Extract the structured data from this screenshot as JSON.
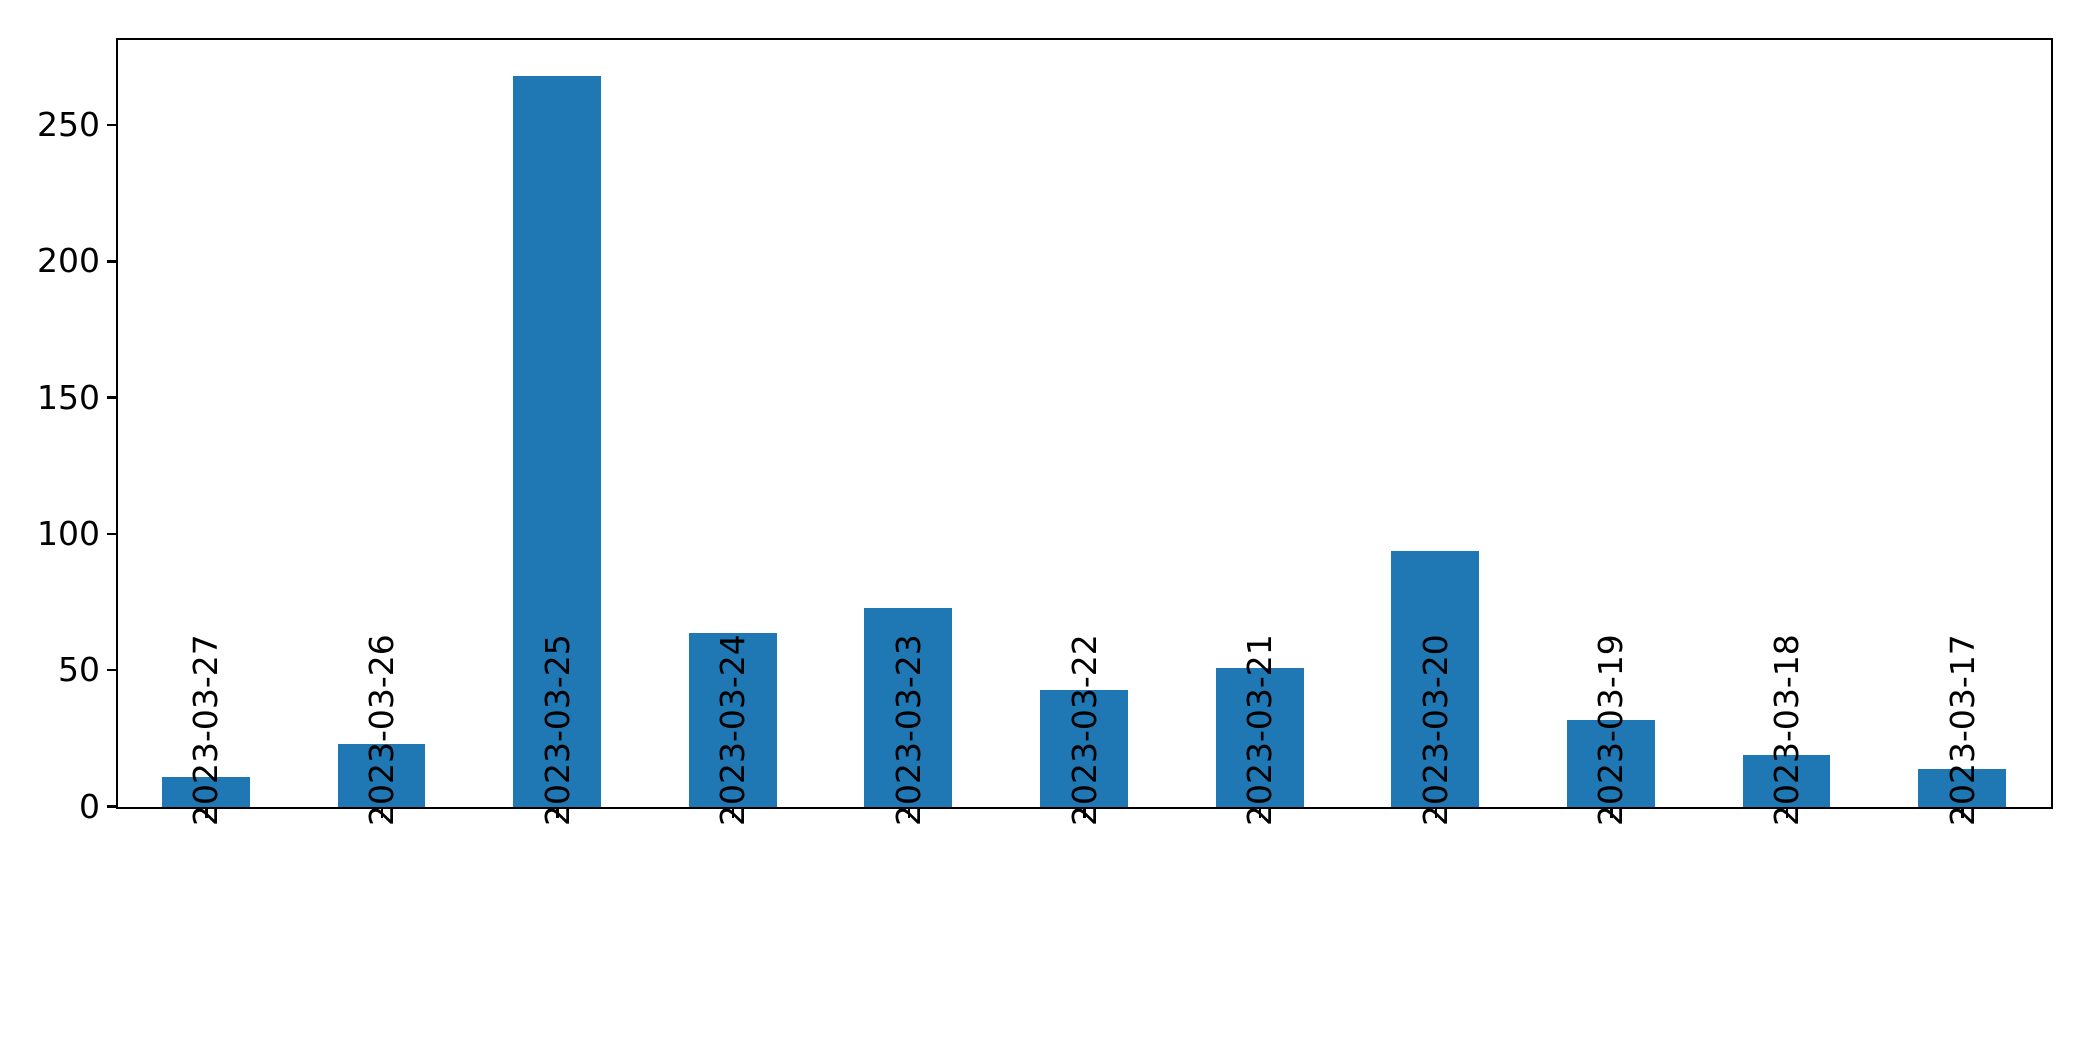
{
  "chart_data": {
    "type": "bar",
    "title": "",
    "xlabel": "",
    "ylabel": "",
    "categories": [
      "2023-03-27",
      "2023-03-26",
      "2023-03-25",
      "2023-03-24",
      "2023-03-23",
      "2023-03-22",
      "2023-03-21",
      "2023-03-20",
      "2023-03-19",
      "2023-03-18",
      "2023-03-17"
    ],
    "values": [
      11,
      23,
      268,
      64,
      73,
      43,
      51,
      94,
      32,
      19,
      14
    ],
    "yticks": [
      0,
      50,
      100,
      150,
      200,
      250
    ],
    "ylim": [
      0,
      281
    ],
    "bar_width_fraction": 0.5,
    "xtick_rotation_deg": 90,
    "grid": false,
    "legend": false,
    "bar_color": "#1f77b4",
    "axis_color": "#000000",
    "background_color": "#ffffff"
  }
}
